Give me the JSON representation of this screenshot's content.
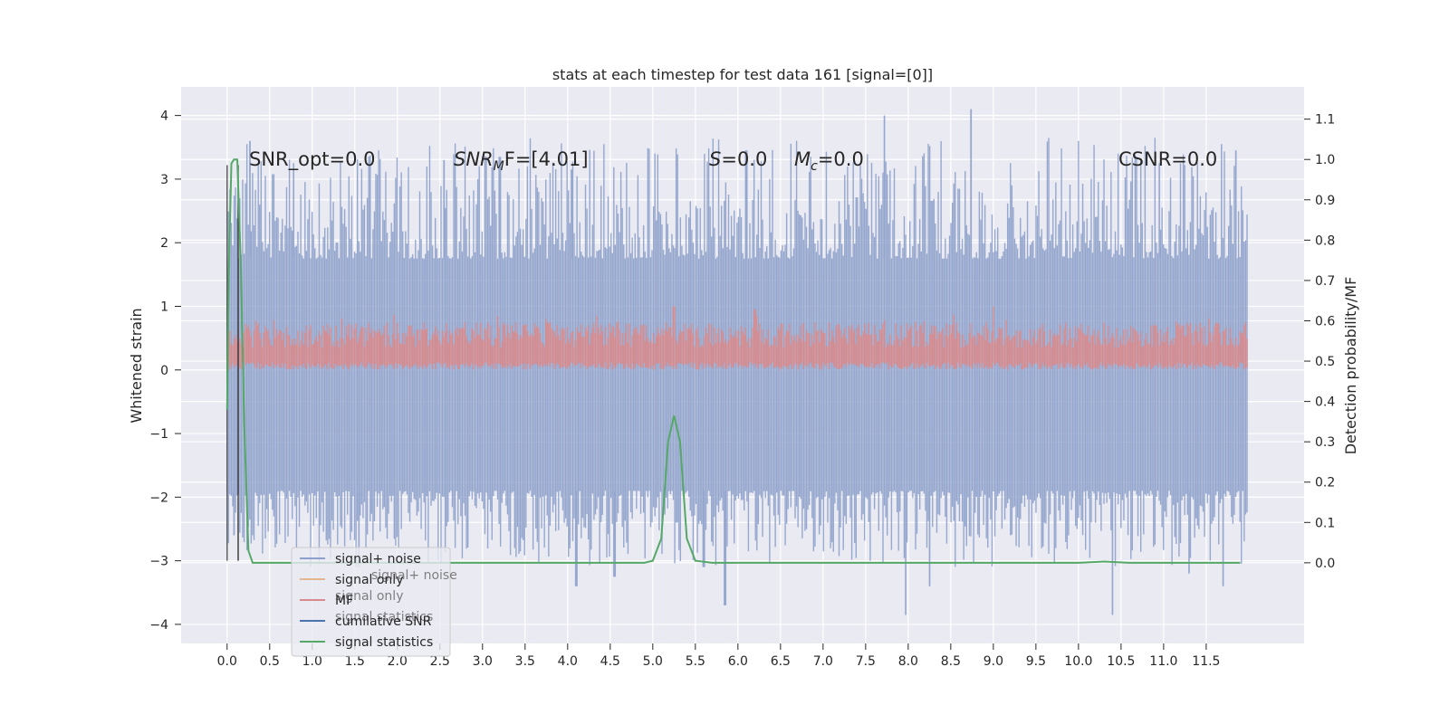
{
  "chart_data": {
    "type": "line",
    "title": "stats at each timestep for test data 161 [signal=[0]]",
    "xlabel": "",
    "ylabel": "Whitened strain",
    "ylabel_right": "Detection probability/MF",
    "xlim": [
      -0.54,
      12.65
    ],
    "ylim": [
      -4.3,
      4.45
    ],
    "ylim_right": [
      -0.2,
      1.18
    ],
    "xticks": [
      0.0,
      0.5,
      1.0,
      1.5,
      2.0,
      2.5,
      3.0,
      3.5,
      4.0,
      4.5,
      5.0,
      5.5,
      6.0,
      6.5,
      7.0,
      7.5,
      8.0,
      8.5,
      9.0,
      9.5,
      10.0,
      10.5,
      11.0,
      11.5
    ],
    "xtick_labels": [
      "0.0",
      "0.5",
      "1.0",
      "1.5",
      "2.0",
      "2.5",
      "3.0",
      "3.5",
      "4.0",
      "4.5",
      "5.0",
      "5.5",
      "6.0",
      "6.5",
      "7.0",
      "7.5",
      "8.0",
      "8.5",
      "9.0",
      "9.5",
      "10.0",
      "10.5",
      "11.0",
      "11.5"
    ],
    "yticks": [
      4,
      3,
      2,
      1,
      0,
      -1,
      -2,
      -3,
      -4
    ],
    "ytick_labels": [
      "4",
      "3",
      "2",
      "1",
      "0",
      "−1",
      "−2",
      "−3",
      "−4"
    ],
    "yticks_right": [
      1.1,
      1.0,
      0.9,
      0.8,
      0.7,
      0.6,
      0.5,
      0.4,
      0.3,
      0.2,
      0.1,
      0.0
    ],
    "ytick_labels_right": [
      "1.1",
      "1.0",
      "0.9",
      "0.8",
      "0.7",
      "0.6",
      "0.5",
      "0.4",
      "0.3",
      "0.2",
      "0.1",
      "0.0"
    ],
    "grid": true,
    "legend_position": "lower-left",
    "legend": [
      {
        "label": "signal+ noise",
        "color": "#8da0cb"
      },
      {
        "label": "signal only",
        "color": "#e5b58f"
      },
      {
        "label": "MF",
        "color": "#d88a8c"
      },
      {
        "label": "cumilative SNR",
        "color": "#4c72b0"
      },
      {
        "label": "signal statistics",
        "color": "#55a868"
      }
    ],
    "legend_ghost": [
      "signal+ noise",
      "signal only",
      "signal statistics"
    ],
    "annotations": {
      "snr_opt": "SNR_opt=0.0",
      "snr_mf_main": "SNR",
      "snr_mf_sub": "M",
      "snr_mf_rest": "F=[4.01]",
      "s_main": "S",
      "s_rest": "=0.0",
      "mc_main": "M",
      "mc_sub": "c",
      "mc_rest": "=0.0",
      "csnr": "CSNR=0.0"
    },
    "series": [
      {
        "name": "signal+ noise",
        "axis": "left",
        "color": "#8da0cb",
        "x_start": 0.0,
        "x_end": 11.98,
        "band_low": -1.9,
        "band_high": 1.75,
        "spikes_high": [
          [
            0.27,
            3.6
          ],
          [
            0.78,
            3.25
          ],
          [
            1.68,
            3.3
          ],
          [
            2.55,
            3.3
          ],
          [
            3.2,
            3.35
          ],
          [
            4.05,
            3.15
          ],
          [
            6.1,
            3.45
          ],
          [
            7.72,
            4.0
          ],
          [
            8.74,
            4.1
          ],
          [
            10.95,
            3.25
          ],
          [
            11.68,
            3.55
          ],
          [
            11.85,
            3.45
          ]
        ],
        "spikes_low": [
          [
            0.08,
            -2.6
          ],
          [
            1.55,
            -3.1
          ],
          [
            4.1,
            -3.4
          ],
          [
            4.55,
            -3.25
          ],
          [
            5.6,
            -3.1
          ],
          [
            5.85,
            -3.7
          ],
          [
            7.97,
            -3.85
          ],
          [
            8.25,
            -3.4
          ],
          [
            10.4,
            -3.85
          ],
          [
            11.3,
            -3.2
          ],
          [
            11.7,
            -3.4
          ]
        ]
      },
      {
        "name": "MF",
        "axis": "left",
        "color": "#d88a8c",
        "x_start": 0.0,
        "x_end": 11.98,
        "band_low": 0.0,
        "band_high": 0.75,
        "peak": [
          [
            5.25,
            1.0
          ],
          [
            6.2,
            0.95
          ],
          [
            9.0,
            1.0
          ]
        ]
      },
      {
        "name": "signal statistics",
        "axis": "right",
        "color": "#55a868",
        "x": [
          0.0,
          0.02,
          0.05,
          0.08,
          0.12,
          0.16,
          0.2,
          0.25,
          0.3,
          0.4,
          0.6,
          1.0,
          2.0,
          3.0,
          4.0,
          4.5,
          4.9,
          5.0,
          5.1,
          5.18,
          5.25,
          5.32,
          5.4,
          5.5,
          5.7,
          6.0,
          7.0,
          8.0,
          9.0,
          10.0,
          10.3,
          10.6,
          11.0,
          11.5,
          11.9
        ],
        "y": [
          0.38,
          0.72,
          0.99,
          1.0,
          1.0,
          0.75,
          0.35,
          0.03,
          0.0,
          0.0,
          0.0,
          0.0,
          0.0,
          0.0,
          0.0,
          0.0,
          0.0,
          0.005,
          0.06,
          0.3,
          0.365,
          0.3,
          0.06,
          0.005,
          0.0,
          0.0,
          0.0,
          0.0,
          0.0,
          0.0,
          0.003,
          0.0,
          0.0,
          0.0,
          0.0
        ]
      }
    ],
    "vlines": [
      {
        "x": 0.0,
        "y_low": -3.0,
        "y_high": 3.22,
        "color": "#555555"
      },
      {
        "x": 0.13,
        "y_low": -3.0,
        "y_high": 3.22,
        "color": "#333333"
      }
    ]
  }
}
